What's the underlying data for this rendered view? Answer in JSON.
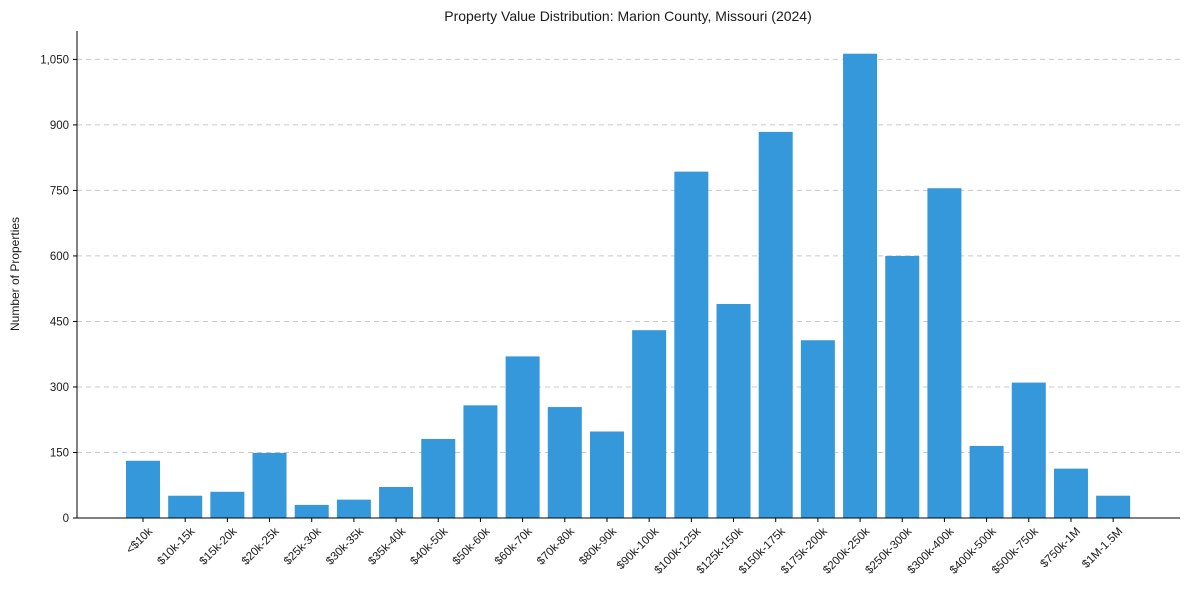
{
  "chart_data": {
    "type": "bar",
    "title": "Property Value Distribution: Marion County, Missouri (2024)",
    "xlabel": "",
    "ylabel": "Number of Properties",
    "categories": [
      "<$10k",
      "$10k-15k",
      "$15k-20k",
      "$20k-25k",
      "$25k-30k",
      "$30k-35k",
      "$35k-40k",
      "$40k-50k",
      "$50k-60k",
      "$60k-70k",
      "$70k-80k",
      "$80k-90k",
      "$90k-100k",
      "$100k-125k",
      "$125k-150k",
      "$150k-175k",
      "$175k-200k",
      "$200k-250k",
      "$250k-300k",
      "$300k-400k",
      "$400k-500k",
      "$500k-750k",
      "$750k-1M",
      "$1M-1.5M"
    ],
    "values": [
      131,
      51,
      60,
      149,
      30,
      42,
      71,
      181,
      258,
      370,
      254,
      198,
      430,
      793,
      490,
      884,
      407,
      1063,
      600,
      755,
      165,
      310,
      113,
      51
    ],
    "ylim": [
      0,
      1115
    ],
    "yticks": [
      0,
      150,
      300,
      450,
      600,
      750,
      900,
      1050
    ],
    "ytick_labels": [
      "0",
      "150",
      "300",
      "450",
      "600",
      "750",
      "900",
      "1,050"
    ],
    "grid": "y-dashed",
    "legend": "none",
    "colors": {
      "bar": "#3498db",
      "grid": "#c8c8c8",
      "axis": "#000000"
    }
  }
}
